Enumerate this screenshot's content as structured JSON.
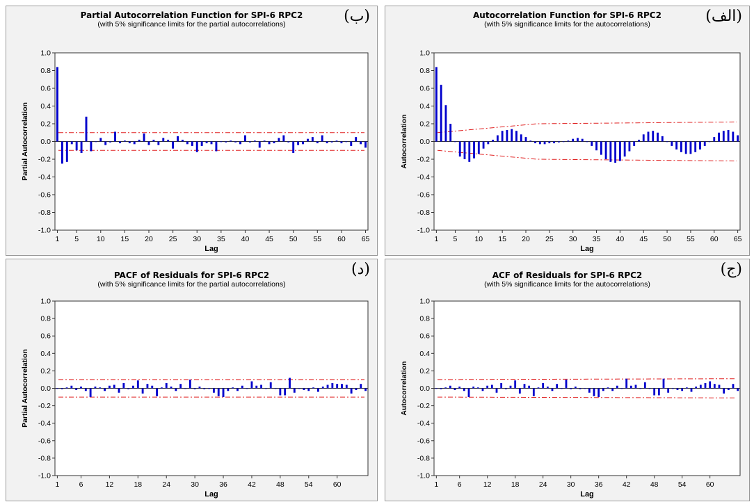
{
  "chart_data": [
    {
      "type": "bar",
      "title": "Partial Autocorrelation Function for SPI-6 RPC2",
      "subtitle": "(with 5% significance limits for the partial autocorrelations)",
      "badge": "(ب)",
      "xlabel": "Lag",
      "ylabel": "Partial Autocorrelation",
      "ylim": [
        -1.0,
        1.0
      ],
      "yticks": [
        "1.0",
        "0.8",
        "0.6",
        "0.4",
        "0.2",
        "0.0",
        "-0.2",
        "-0.4",
        "-0.6",
        "-0.8",
        "-1.0"
      ],
      "xticks": [
        1,
        5,
        10,
        15,
        20,
        25,
        30,
        35,
        40,
        45,
        50,
        55,
        60,
        65
      ],
      "xmax": 65,
      "limits": {
        "upper": [
          0.1,
          0.1
        ],
        "lower": [
          -0.1,
          -0.1
        ]
      },
      "values": [
        0.84,
        -0.25,
        -0.23,
        -0.03,
        -0.1,
        -0.13,
        0.28,
        -0.11,
        0.0,
        0.04,
        -0.04,
        -0.01,
        0.11,
        -0.02,
        0.01,
        -0.02,
        -0.03,
        0.02,
        0.09,
        -0.04,
        0.02,
        -0.04,
        0.04,
        0.02,
        -0.08,
        0.06,
        0.02,
        -0.03,
        -0.05,
        -0.12,
        -0.05,
        -0.02,
        -0.03,
        -0.11,
        0.0,
        -0.01,
        0.01,
        -0.01,
        -0.03,
        0.07,
        -0.01,
        0.01,
        -0.07,
        0.01,
        -0.03,
        -0.02,
        0.04,
        0.07,
        -0.01,
        -0.13,
        -0.04,
        -0.03,
        0.03,
        0.05,
        -0.02,
        0.07,
        -0.02,
        -0.01,
        0.01,
        -0.02,
        0.0,
        -0.05,
        0.05,
        -0.03,
        -0.07
      ]
    },
    {
      "type": "bar",
      "title": "Autocorrelation Function for SPI-6 RPC2",
      "subtitle": "(with 5% significance limits for the autocorrelations)",
      "badge": "(الف)",
      "xlabel": "Lag",
      "ylabel": "Autocorrelation",
      "ylim": [
        -1.0,
        1.0
      ],
      "yticks": [
        "1.0",
        "0.8",
        "0.6",
        "0.4",
        "0.2",
        "0.0",
        "-0.2",
        "-0.4",
        "-0.6",
        "-0.8",
        "-1.0"
      ],
      "xticks": [
        1,
        5,
        10,
        15,
        20,
        25,
        30,
        35,
        40,
        45,
        50,
        55,
        60,
        65
      ],
      "xmax": 65,
      "limits": {
        "upper": [
          0.1,
          0.2,
          0.21,
          0.22
        ],
        "lower": [
          -0.1,
          -0.2,
          -0.21,
          -0.22
        ]
      },
      "values": [
        0.84,
        0.64,
        0.41,
        0.2,
        0.0,
        -0.17,
        -0.2,
        -0.23,
        -0.19,
        -0.14,
        -0.08,
        -0.03,
        0.02,
        0.07,
        0.12,
        0.13,
        0.14,
        0.12,
        0.08,
        0.05,
        0.01,
        -0.02,
        -0.03,
        -0.03,
        -0.02,
        -0.02,
        -0.01,
        0.0,
        0.01,
        0.03,
        0.04,
        0.03,
        0.0,
        -0.05,
        -0.1,
        -0.15,
        -0.2,
        -0.23,
        -0.24,
        -0.22,
        -0.17,
        -0.11,
        -0.05,
        0.02,
        0.08,
        0.11,
        0.12,
        0.1,
        0.06,
        0.0,
        -0.05,
        -0.09,
        -0.12,
        -0.14,
        -0.14,
        -0.12,
        -0.09,
        -0.05,
        0.0,
        0.05,
        0.1,
        0.12,
        0.13,
        0.11,
        0.07
      ]
    },
    {
      "type": "bar",
      "title": "PACF of Residuals for SPI-6 RPC2",
      "subtitle": "(with 5% significance limits for the partial autocorrelations)",
      "badge": "(د)",
      "xlabel": "Lag",
      "ylabel": "Partial Autocorrelation",
      "ylim": [
        -1.0,
        1.0
      ],
      "yticks": [
        "1.0",
        "0.8",
        "0.6",
        "0.4",
        "0.2",
        "0.0",
        "-0.2",
        "-0.4",
        "-0.6",
        "-0.8",
        "-1.0"
      ],
      "xticks": [
        1,
        6,
        12,
        18,
        24,
        30,
        36,
        42,
        48,
        54,
        60
      ],
      "xmax": 66,
      "limits": {
        "upper": [
          0.1,
          0.1
        ],
        "lower": [
          -0.1,
          -0.1
        ]
      },
      "values": [
        0.0,
        -0.01,
        0.01,
        0.03,
        -0.02,
        0.02,
        -0.03,
        -0.1,
        0.02,
        0.01,
        -0.03,
        0.03,
        0.04,
        -0.05,
        0.06,
        -0.01,
        0.03,
        0.09,
        -0.06,
        0.05,
        0.03,
        -0.09,
        0.01,
        0.06,
        0.02,
        -0.03,
        0.05,
        0.0,
        0.1,
        -0.01,
        0.02,
        -0.01,
        0.0,
        -0.05,
        -0.09,
        -0.1,
        -0.03,
        0.01,
        -0.03,
        0.03,
        0.0,
        0.08,
        0.03,
        0.04,
        0.0,
        0.07,
        0.0,
        -0.08,
        -0.08,
        0.12,
        -0.05,
        0.0,
        -0.02,
        -0.03,
        0.01,
        -0.04,
        0.02,
        0.04,
        0.06,
        0.05,
        0.05,
        0.04,
        -0.06,
        -0.02,
        0.05,
        -0.03
      ]
    },
    {
      "type": "bar",
      "title": "ACF of Residuals for SPI-6 RPC2",
      "subtitle": "(with 5% significance limits for the autocorrelations)",
      "badge": "(ج)",
      "xlabel": "Lag",
      "ylabel": "Autocorrelation",
      "ylim": [
        -1.0,
        1.0
      ],
      "yticks": [
        "1.0",
        "0.8",
        "0.6",
        "0.4",
        "0.2",
        "0.0",
        "-0.2",
        "-0.4",
        "-0.6",
        "-0.8",
        "-1.0"
      ],
      "xticks": [
        1,
        6,
        12,
        18,
        24,
        30,
        36,
        42,
        48,
        54,
        60
      ],
      "xmax": 66,
      "limits": {
        "upper": [
          0.1,
          0.11
        ],
        "lower": [
          -0.1,
          -0.11
        ]
      },
      "values": [
        0.0,
        -0.01,
        0.01,
        0.03,
        -0.02,
        0.02,
        -0.03,
        -0.1,
        0.02,
        0.01,
        -0.03,
        0.03,
        0.04,
        -0.05,
        0.06,
        -0.01,
        0.03,
        0.09,
        -0.06,
        0.05,
        0.03,
        -0.09,
        0.01,
        0.06,
        0.02,
        -0.03,
        0.05,
        0.0,
        0.1,
        -0.01,
        0.02,
        -0.01,
        0.0,
        -0.05,
        -0.09,
        -0.1,
        -0.03,
        0.01,
        -0.03,
        0.03,
        0.0,
        0.11,
        0.03,
        0.04,
        0.0,
        0.07,
        0.0,
        -0.08,
        -0.08,
        0.11,
        -0.05,
        0.0,
        -0.02,
        -0.03,
        0.01,
        -0.04,
        0.02,
        0.04,
        0.06,
        0.08,
        0.05,
        0.04,
        -0.06,
        -0.02,
        0.05,
        -0.03
      ]
    }
  ],
  "colors": {
    "bars": "#0000cc",
    "limits": "#e02020",
    "axis": "#333333"
  }
}
